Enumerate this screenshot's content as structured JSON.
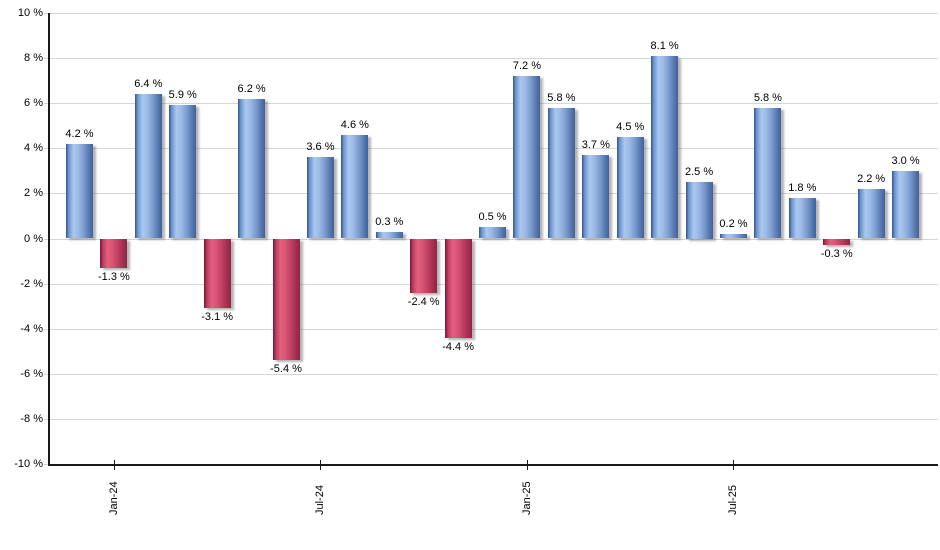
{
  "chart_data": {
    "type": "bar",
    "title": "",
    "xlabel": "",
    "ylabel": "",
    "ylim": [
      -10,
      10
    ],
    "grid": true,
    "legend": "none",
    "bars": [
      {
        "value": 4.2,
        "label": "4.2 %"
      },
      {
        "value": -1.3,
        "label": "-1.3 %"
      },
      {
        "value": 6.4,
        "label": "6.4 %"
      },
      {
        "value": 5.9,
        "label": "5.9 %"
      },
      {
        "value": -3.1,
        "label": "-3.1 %"
      },
      {
        "value": 6.2,
        "label": "6.2 %"
      },
      {
        "value": -5.4,
        "label": "-5.4 %"
      },
      {
        "value": 3.6,
        "label": "3.6 %"
      },
      {
        "value": 4.6,
        "label": "4.6 %"
      },
      {
        "value": 0.3,
        "label": "0.3 %"
      },
      {
        "value": -2.4,
        "label": "-2.4 %"
      },
      {
        "value": -4.4,
        "label": "-4.4 %"
      },
      {
        "value": 0.5,
        "label": "0.5 %"
      },
      {
        "value": 7.2,
        "label": "7.2 %"
      },
      {
        "value": 5.8,
        "label": "5.8 %"
      },
      {
        "value": 3.7,
        "label": "3.7 %"
      },
      {
        "value": 4.5,
        "label": "4.5 %"
      },
      {
        "value": 8.1,
        "label": "8.1 %"
      },
      {
        "value": 2.5,
        "label": "2.5 %"
      },
      {
        "value": 0.2,
        "label": "0.2 %"
      },
      {
        "value": 5.8,
        "label": "5.8 %"
      },
      {
        "value": 1.8,
        "label": "1.8 %"
      },
      {
        "value": -0.3,
        "label": "-0.3 %"
      },
      {
        "value": 2.2,
        "label": "2.2 %"
      },
      {
        "value": 3.0,
        "label": "3.0 %"
      }
    ],
    "x_ticks": [
      {
        "bar_index": 1,
        "label": "Jan-24"
      },
      {
        "bar_index": 7,
        "label": "Jul-24"
      },
      {
        "bar_index": 13,
        "label": "Jan-25"
      },
      {
        "bar_index": 19,
        "label": "Jul-25"
      }
    ],
    "y_ticks": [
      {
        "value": 10,
        "label": "10 %"
      },
      {
        "value": 8,
        "label": "8 %"
      },
      {
        "value": 6,
        "label": "6 %"
      },
      {
        "value": 4,
        "label": "4 %"
      },
      {
        "value": 2,
        "label": "2 %"
      },
      {
        "value": 0,
        "label": "0 %"
      },
      {
        "value": -2,
        "label": "-2 %"
      },
      {
        "value": -4,
        "label": "-4 %"
      },
      {
        "value": -6,
        "label": "-6 %"
      },
      {
        "value": -8,
        "label": "-8 %"
      },
      {
        "value": -10,
        "label": "-10 %"
      }
    ],
    "colors": {
      "positive_bar_highlight": "#a9c8f0",
      "positive_bar_edge": "#33538d",
      "negative_bar_highlight": "#e3607e",
      "negative_bar_edge": "#7d1635",
      "gridline": "#d6d6d6",
      "axis": "#1a1a1a",
      "label_text": "#000000",
      "background": "#ffffff"
    }
  }
}
